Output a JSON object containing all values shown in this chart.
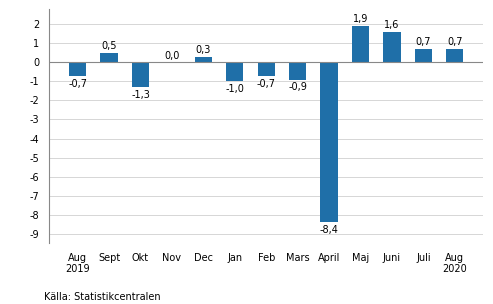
{
  "categories": [
    "Aug\n2019",
    "Sept",
    "Okt",
    "Nov",
    "Dec",
    "Jan",
    "Feb",
    "Mars",
    "April",
    "Maj",
    "Juni",
    "Juli",
    "Aug\n2020"
  ],
  "values": [
    -0.7,
    0.5,
    -1.3,
    0.0,
    0.3,
    -1.0,
    -0.7,
    -0.9,
    -8.4,
    1.9,
    1.6,
    0.7,
    0.7
  ],
  "labels": [
    "-0,7",
    "0,5",
    "-1,3",
    "0,0",
    "0,3",
    "-1,0",
    "-0,7",
    "-0,9",
    "-8,4",
    "1,9",
    "1,6",
    "0,7",
    "0,7"
  ],
  "bar_color": "#1f6fa8",
  "ylim": [
    -9.5,
    2.8
  ],
  "yticks": [
    -9,
    -8,
    -7,
    -6,
    -5,
    -4,
    -3,
    -2,
    -1,
    0,
    1,
    2
  ],
  "source_text": "Källa: Statistikcentralen",
  "background_color": "#ffffff",
  "grid_color": "#d0d0d0",
  "label_fontsize": 7,
  "tick_fontsize": 7,
  "source_fontsize": 7,
  "bar_width": 0.55
}
